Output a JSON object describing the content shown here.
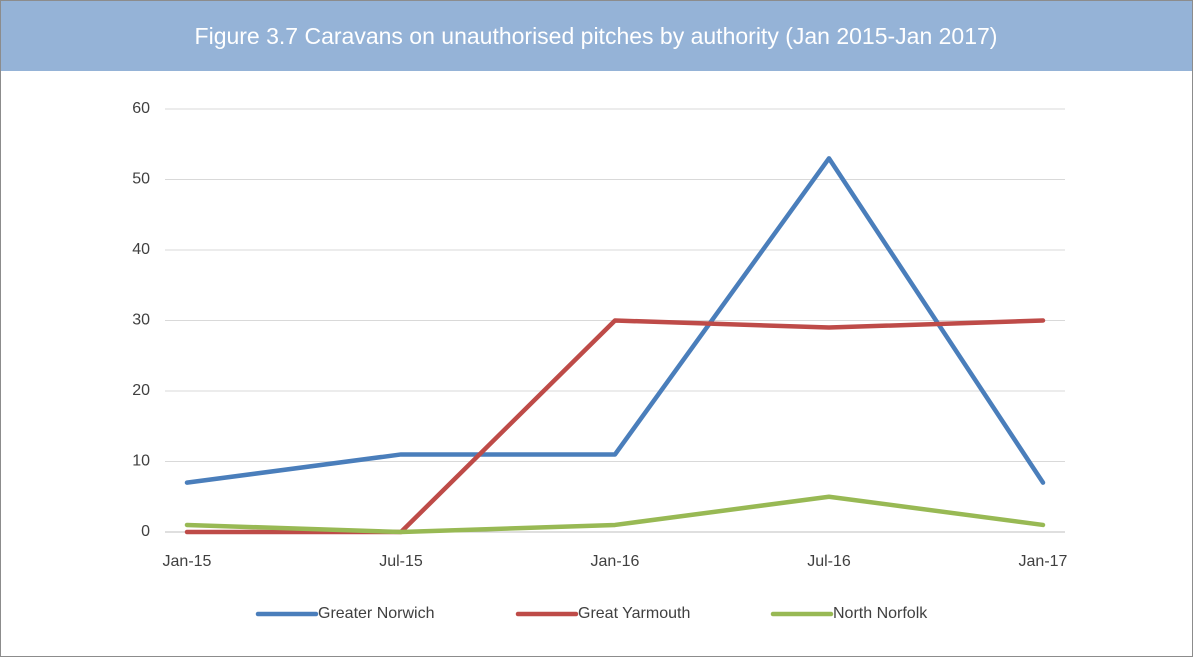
{
  "chart_data": {
    "type": "line",
    "title": "Figure 3.7 Caravans on unauthorised pitches by authority (Jan 2015-Jan 2017)",
    "categories": [
      "Jan-15",
      "Jul-15",
      "Jan-16",
      "Jul-16",
      "Jan-17"
    ],
    "series": [
      {
        "name": "Greater Norwich",
        "color": "#4a7ebb",
        "values": [
          7,
          11,
          11,
          53,
          7
        ]
      },
      {
        "name": "Great Yarmouth",
        "color": "#be4b48",
        "values": [
          0,
          0,
          30,
          29,
          30
        ]
      },
      {
        "name": "North Norfolk",
        "color": "#98b954",
        "values": [
          1,
          0,
          1,
          5,
          1
        ]
      }
    ],
    "ylim": [
      0,
      60
    ],
    "yticks": [
      0,
      10,
      20,
      30,
      40,
      50,
      60
    ],
    "grid": true,
    "legend": "bottom"
  }
}
